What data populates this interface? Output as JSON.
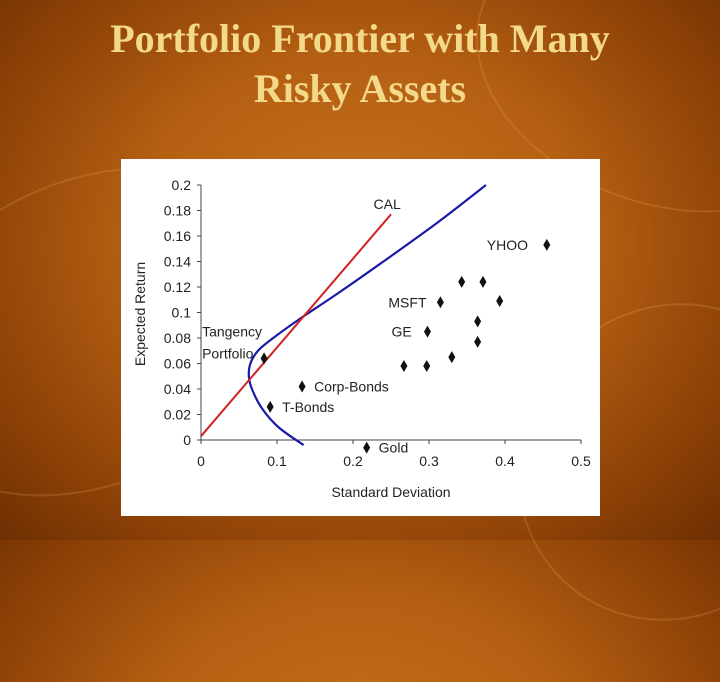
{
  "slide": {
    "title_line1": "Portfolio Frontier with Many",
    "title_line2": "Risky Assets"
  },
  "colors": {
    "background": "#b45f12",
    "title": "#f3d98a",
    "frontier": "#1a1aa8",
    "cal": "#d42020",
    "marker": "#111111"
  },
  "chart_data": {
    "type": "scatter",
    "xlabel": "Standard Deviation",
    "ylabel": "Expected Return",
    "xlim": [
      0,
      0.5
    ],
    "ylim": [
      0,
      0.2
    ],
    "x_ticks": [
      "0",
      "0.1",
      "0.2",
      "0.3",
      "0.4",
      "0.5"
    ],
    "y_ticks": [
      "0",
      "0.02",
      "0.04",
      "0.06",
      "0.08",
      "0.1",
      "0.12",
      "0.14",
      "0.16",
      "0.18",
      "0.2"
    ],
    "grid": false,
    "legend": "none",
    "frontier": {
      "x": [
        0.375,
        0.31,
        0.24,
        0.18,
        0.13,
        0.095,
        0.075,
        0.065,
        0.063,
        0.067,
        0.08,
        0.102,
        0.135
      ],
      "y": [
        0.2,
        0.17,
        0.14,
        0.115,
        0.095,
        0.08,
        0.07,
        0.06,
        0.05,
        0.04,
        0.025,
        0.01,
        -0.004
      ]
    },
    "cal": {
      "label": "CAL",
      "x": [
        0,
        0.25
      ],
      "y": [
        0.003,
        0.177
      ]
    },
    "points": [
      {
        "label": "Tangency",
        "label2": "Portfolio",
        "x": 0.083,
        "y": 0.064
      },
      {
        "label": "Corp-Bonds",
        "x": 0.133,
        "y": 0.042
      },
      {
        "label": "T-Bonds",
        "x": 0.091,
        "y": 0.026
      },
      {
        "label": "Gold",
        "x": 0.218,
        "y": -0.006
      },
      {
        "label": "MSFT",
        "x": 0.315,
        "y": 0.108
      },
      {
        "label": "GE",
        "x": 0.298,
        "y": 0.085
      },
      {
        "label": "YHOO",
        "x": 0.455,
        "y": 0.153
      },
      {
        "label": "",
        "x": 0.343,
        "y": 0.124
      },
      {
        "label": "",
        "x": 0.371,
        "y": 0.124
      },
      {
        "label": "",
        "x": 0.393,
        "y": 0.109
      },
      {
        "label": "",
        "x": 0.364,
        "y": 0.093
      },
      {
        "label": "",
        "x": 0.364,
        "y": 0.077
      },
      {
        "label": "",
        "x": 0.33,
        "y": 0.065
      },
      {
        "label": "",
        "x": 0.267,
        "y": 0.058
      },
      {
        "label": "",
        "x": 0.297,
        "y": 0.058
      }
    ]
  }
}
